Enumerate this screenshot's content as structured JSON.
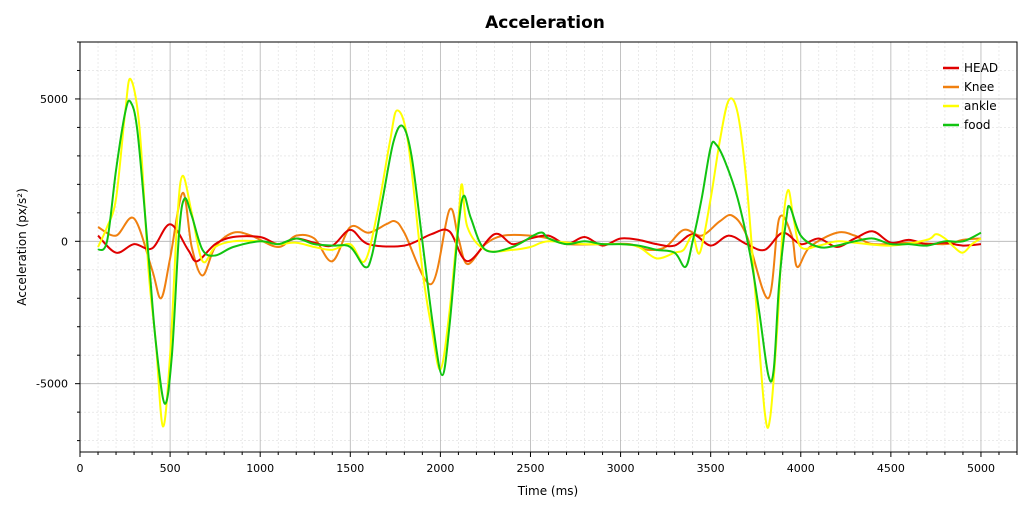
{
  "chart_data": {
    "type": "line",
    "title": "Acceleration",
    "xlabel": "Time (ms)",
    "ylabel": "Acceleration (px/s²)",
    "xlim": [
      0,
      5200
    ],
    "ylim": [
      -7400,
      7000
    ],
    "x_ticks": [
      0,
      500,
      1000,
      1500,
      2000,
      2500,
      3000,
      3500,
      4000,
      4500,
      5000
    ],
    "y_ticks": [
      -5000,
      0,
      5000
    ],
    "grid": true,
    "legend": "top-right",
    "series": [
      {
        "name": "HEAD",
        "color": "#e00000",
        "points": [
          [
            100,
            200
          ],
          [
            200,
            -400
          ],
          [
            300,
            -100
          ],
          [
            400,
            -250
          ],
          [
            500,
            600
          ],
          [
            600,
            -300
          ],
          [
            650,
            -700
          ],
          [
            750,
            -100
          ],
          [
            850,
            150
          ],
          [
            1000,
            150
          ],
          [
            1100,
            -100
          ],
          [
            1200,
            100
          ],
          [
            1300,
            -50
          ],
          [
            1400,
            -150
          ],
          [
            1500,
            400
          ],
          [
            1600,
            -100
          ],
          [
            1800,
            -150
          ],
          [
            1950,
            250
          ],
          [
            2050,
            350
          ],
          [
            2150,
            -700
          ],
          [
            2300,
            250
          ],
          [
            2400,
            -100
          ],
          [
            2500,
            100
          ],
          [
            2600,
            200
          ],
          [
            2700,
            -100
          ],
          [
            2800,
            150
          ],
          [
            2900,
            -150
          ],
          [
            3000,
            100
          ],
          [
            3100,
            50
          ],
          [
            3200,
            -100
          ],
          [
            3300,
            -150
          ],
          [
            3400,
            250
          ],
          [
            3500,
            -150
          ],
          [
            3600,
            200
          ],
          [
            3700,
            -100
          ],
          [
            3800,
            -300
          ],
          [
            3900,
            300
          ],
          [
            4000,
            -100
          ],
          [
            4100,
            100
          ],
          [
            4200,
            -200
          ],
          [
            4300,
            100
          ],
          [
            4400,
            350
          ],
          [
            4500,
            -50
          ],
          [
            4600,
            50
          ],
          [
            4700,
            -100
          ],
          [
            4800,
            -50
          ],
          [
            4900,
            -150
          ],
          [
            5000,
            -100
          ]
        ]
      },
      {
        "name": "Knee",
        "color": "#f08010",
        "points": [
          [
            100,
            500
          ],
          [
            200,
            200
          ],
          [
            300,
            800
          ],
          [
            400,
            -1000
          ],
          [
            450,
            -2000
          ],
          [
            500,
            -600
          ],
          [
            570,
            1700
          ],
          [
            620,
            -200
          ],
          [
            680,
            -1200
          ],
          [
            750,
            -200
          ],
          [
            850,
            300
          ],
          [
            950,
            200
          ],
          [
            1100,
            -200
          ],
          [
            1200,
            200
          ],
          [
            1300,
            100
          ],
          [
            1400,
            -700
          ],
          [
            1500,
            500
          ],
          [
            1600,
            300
          ],
          [
            1700,
            600
          ],
          [
            1750,
            700
          ],
          [
            1800,
            300
          ],
          [
            1950,
            -1500
          ],
          [
            2050,
            1100
          ],
          [
            2100,
            100
          ],
          [
            2150,
            -800
          ],
          [
            2250,
            -100
          ],
          [
            2350,
            200
          ],
          [
            2500,
            200
          ],
          [
            2600,
            100
          ],
          [
            2700,
            -100
          ],
          [
            2900,
            -100
          ],
          [
            3050,
            -100
          ],
          [
            3150,
            -300
          ],
          [
            3250,
            -200
          ],
          [
            3350,
            400
          ],
          [
            3450,
            200
          ],
          [
            3550,
            700
          ],
          [
            3620,
            900
          ],
          [
            3700,
            200
          ],
          [
            3820,
            -2000
          ],
          [
            3880,
            800
          ],
          [
            3950,
            200
          ],
          [
            3980,
            -900
          ],
          [
            4050,
            -200
          ],
          [
            4200,
            300
          ],
          [
            4300,
            200
          ],
          [
            4400,
            -100
          ],
          [
            4600,
            -50
          ],
          [
            4800,
            -100
          ],
          [
            4900,
            50
          ],
          [
            5000,
            100
          ]
        ]
      },
      {
        "name": "ankle",
        "color": "#ffff00",
        "points": [
          [
            100,
            -200
          ],
          [
            150,
            500
          ],
          [
            200,
            1500
          ],
          [
            250,
            4500
          ],
          [
            280,
            5700
          ],
          [
            330,
            4000
          ],
          [
            380,
            -1000
          ],
          [
            420,
            -3500
          ],
          [
            460,
            -6500
          ],
          [
            500,
            -4000
          ],
          [
            540,
            800
          ],
          [
            570,
            2300
          ],
          [
            620,
            1000
          ],
          [
            680,
            -700
          ],
          [
            750,
            -200
          ],
          [
            850,
            0
          ],
          [
            1000,
            0
          ],
          [
            1100,
            -100
          ],
          [
            1200,
            -50
          ],
          [
            1300,
            -200
          ],
          [
            1400,
            -300
          ],
          [
            1500,
            -100
          ],
          [
            1580,
            -700
          ],
          [
            1650,
            1000
          ],
          [
            1720,
            3500
          ],
          [
            1760,
            4600
          ],
          [
            1820,
            3500
          ],
          [
            1900,
            -1000
          ],
          [
            1950,
            -3000
          ],
          [
            2000,
            -4500
          ],
          [
            2050,
            -2500
          ],
          [
            2100,
            800
          ],
          [
            2120,
            2000
          ],
          [
            2150,
            500
          ],
          [
            2250,
            -300
          ],
          [
            2400,
            -300
          ],
          [
            2500,
            -200
          ],
          [
            2600,
            0
          ],
          [
            2800,
            -100
          ],
          [
            3000,
            -100
          ],
          [
            3100,
            -200
          ],
          [
            3200,
            -600
          ],
          [
            3300,
            -400
          ],
          [
            3350,
            -300
          ],
          [
            3400,
            200
          ],
          [
            3440,
            -400
          ],
          [
            3500,
            1500
          ],
          [
            3550,
            3500
          ],
          [
            3600,
            4950
          ],
          [
            3650,
            4500
          ],
          [
            3700,
            2000
          ],
          [
            3750,
            -2000
          ],
          [
            3800,
            -6000
          ],
          [
            3830,
            -6200
          ],
          [
            3870,
            -3000
          ],
          [
            3900,
            500
          ],
          [
            3930,
            1800
          ],
          [
            3960,
            800
          ],
          [
            4000,
            -200
          ],
          [
            4100,
            -150
          ],
          [
            4200,
            0
          ],
          [
            4300,
            -50
          ],
          [
            4500,
            -150
          ],
          [
            4700,
            50
          ],
          [
            4750,
            250
          ],
          [
            4800,
            100
          ],
          [
            4850,
            -200
          ],
          [
            4900,
            -400
          ],
          [
            4950,
            -100
          ],
          [
            5000,
            100
          ]
        ]
      },
      {
        "name": "food",
        "color": "#11c411",
        "points": [
          [
            100,
            -300
          ],
          [
            150,
            0
          ],
          [
            200,
            2500
          ],
          [
            250,
            4500
          ],
          [
            280,
            4900
          ],
          [
            320,
            3800
          ],
          [
            380,
            -500
          ],
          [
            420,
            -3500
          ],
          [
            470,
            -5700
          ],
          [
            510,
            -4000
          ],
          [
            550,
            300
          ],
          [
            580,
            1500
          ],
          [
            620,
            900
          ],
          [
            680,
            -300
          ],
          [
            750,
            -500
          ],
          [
            850,
            -200
          ],
          [
            1000,
            0
          ],
          [
            1100,
            -100
          ],
          [
            1200,
            100
          ],
          [
            1300,
            -100
          ],
          [
            1400,
            -150
          ],
          [
            1500,
            -200
          ],
          [
            1580,
            -900
          ],
          [
            1620,
            -500
          ],
          [
            1680,
            1500
          ],
          [
            1740,
            3500
          ],
          [
            1790,
            4050
          ],
          [
            1840,
            3000
          ],
          [
            1900,
            0
          ],
          [
            1960,
            -3000
          ],
          [
            2010,
            -4700
          ],
          [
            2050,
            -3000
          ],
          [
            2100,
            500
          ],
          [
            2130,
            1600
          ],
          [
            2170,
            800
          ],
          [
            2250,
            -300
          ],
          [
            2400,
            -200
          ],
          [
            2550,
            300
          ],
          [
            2600,
            100
          ],
          [
            2700,
            -100
          ],
          [
            2800,
            0
          ],
          [
            2900,
            -100
          ],
          [
            3000,
            -100
          ],
          [
            3100,
            -150
          ],
          [
            3200,
            -300
          ],
          [
            3300,
            -400
          ],
          [
            3360,
            -900
          ],
          [
            3400,
            0
          ],
          [
            3450,
            1500
          ],
          [
            3500,
            3300
          ],
          [
            3530,
            3400
          ],
          [
            3580,
            2800
          ],
          [
            3650,
            1500
          ],
          [
            3720,
            -500
          ],
          [
            3770,
            -2500
          ],
          [
            3820,
            -4700
          ],
          [
            3850,
            -4500
          ],
          [
            3880,
            -1500
          ],
          [
            3920,
            800
          ],
          [
            3940,
            1200
          ],
          [
            4000,
            200
          ],
          [
            4100,
            -200
          ],
          [
            4200,
            -150
          ],
          [
            4300,
            0
          ],
          [
            4400,
            100
          ],
          [
            4500,
            -100
          ],
          [
            4600,
            -100
          ],
          [
            4700,
            -150
          ],
          [
            4800,
            0
          ],
          [
            4900,
            0
          ],
          [
            5000,
            300
          ]
        ]
      }
    ]
  }
}
